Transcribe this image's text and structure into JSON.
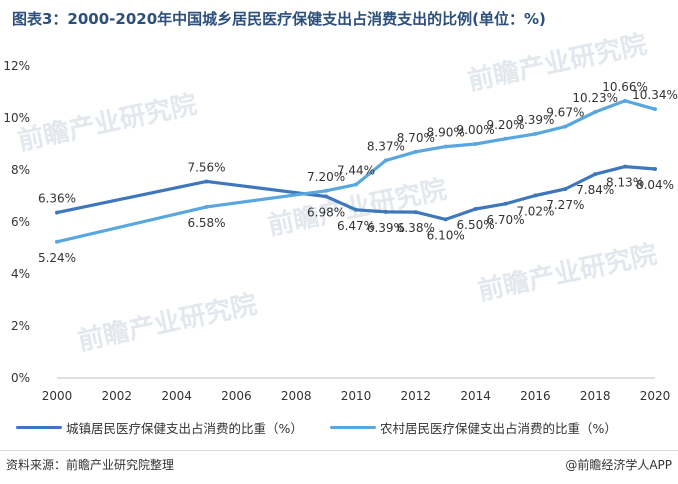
{
  "title": "图表3：2000-2020年中国城乡居民医疗保健支出占消费支出的比例(单位：%)",
  "watermark": "前瞻产业研究院",
  "footer": {
    "source": "资料来源：前瞻产业研究院整理",
    "brand": "@前瞻经济学人APP"
  },
  "colors": {
    "urban": "#3f77bd",
    "rural": "#5aa7e0",
    "axis": "#bfbfbf",
    "title": "#2c4f7c"
  },
  "chart_data": {
    "type": "line",
    "title": "图表3：2000-2020年中国城乡居民医疗保健支出占消费支出的比例(单位：%)",
    "xlabel": "",
    "ylabel": "",
    "xlim": [
      2000,
      2020
    ],
    "ylim": [
      0,
      12
    ],
    "x_ticks": [
      "2000",
      "2002",
      "2004",
      "2006",
      "2008",
      "2010",
      "2012",
      "2014",
      "2016",
      "2018",
      "2020"
    ],
    "y_ticks": [
      "0%",
      "2%",
      "4%",
      "6%",
      "8%",
      "10%",
      "12%"
    ],
    "grid": false,
    "legend_position": "bottom",
    "series": [
      {
        "name": "城镇居民医疗保健支出占消费的比重（%）",
        "color": "#3f77bd",
        "x": [
          2000,
          2005,
          2009,
          2010,
          2011,
          2012,
          2013,
          2014,
          2015,
          2016,
          2017,
          2018,
          2019,
          2020
        ],
        "values": [
          6.36,
          7.56,
          6.98,
          6.47,
          6.39,
          6.38,
          6.1,
          6.5,
          6.7,
          7.02,
          7.27,
          7.84,
          8.13,
          8.04
        ],
        "labels": [
          "6.36%",
          "7.56%",
          "6.98%",
          "6.47%",
          "6.39%",
          "6.38%",
          "6.10%",
          "6.50%",
          "6.70%",
          "7.02%",
          "7.27%",
          "7.84%",
          "8.13%",
          "8.04%"
        ],
        "label_pos": [
          "above",
          "above",
          "below",
          "below",
          "below",
          "below",
          "below",
          "below",
          "below",
          "below",
          "below",
          "below",
          "below",
          "below"
        ]
      },
      {
        "name": "农村居民医疗保健支出占消费的比重（%）",
        "color": "#5aa7e0",
        "x": [
          2000,
          2005,
          2009,
          2010,
          2011,
          2012,
          2013,
          2014,
          2015,
          2016,
          2017,
          2018,
          2019,
          2020
        ],
        "values": [
          5.24,
          6.58,
          7.2,
          7.44,
          8.37,
          8.7,
          8.9,
          9.0,
          9.2,
          9.39,
          9.67,
          10.23,
          10.66,
          10.34
        ],
        "labels": [
          "5.24%",
          "6.58%",
          "7.20%",
          "7.44%",
          "8.37%",
          "8.70%",
          "8.90%",
          "9.00%",
          "9.20%",
          "9.39%",
          "9.67%",
          "10.23%",
          "10.66%",
          "10.34%"
        ],
        "label_pos": [
          "below",
          "below",
          "above",
          "above",
          "above",
          "above",
          "above",
          "above",
          "above",
          "above",
          "above",
          "above",
          "above",
          "above"
        ]
      }
    ]
  }
}
